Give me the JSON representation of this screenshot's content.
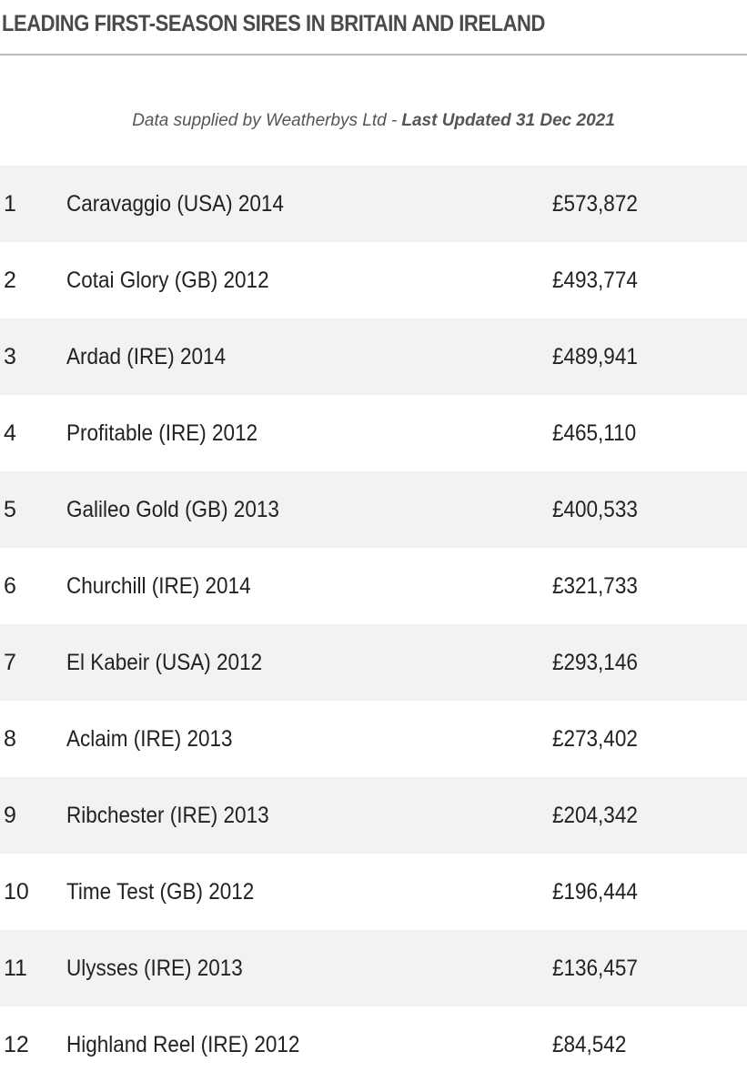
{
  "header": {
    "title": "LEADING FIRST-SEASON SIRES IN BRITAIN AND IRELAND",
    "note": "Data supplied by Weatherbys Ltd -",
    "updated": "Last Updated 31 Dec 2021"
  },
  "table": {
    "rows": [
      [
        "1",
        "Caravaggio (USA) 2014",
        "£573,872"
      ],
      [
        "2",
        "Cotai Glory (GB) 2012",
        "£493,774"
      ],
      [
        "3",
        "Ardad (IRE) 2014",
        "£489,941"
      ],
      [
        "4",
        "Profitable (IRE) 2012",
        "£465,110"
      ],
      [
        "5",
        "Galileo Gold (GB) 2013",
        "£400,533"
      ],
      [
        "6",
        "Churchill (IRE) 2014",
        "£321,733"
      ],
      [
        "7",
        "El Kabeir (USA) 2012",
        "£293,146"
      ],
      [
        "8",
        "Aclaim (IRE) 2013",
        "£273,402"
      ],
      [
        "9",
        "Ribchester (IRE) 2013",
        "£204,342"
      ],
      [
        "10",
        "Time Test (GB) 2012",
        "£196,444"
      ],
      [
        "11",
        "Ulysses (IRE) 2013",
        "£136,457"
      ],
      [
        "12",
        "Highland Reel (IRE) 2012",
        "£84,542"
      ]
    ]
  }
}
